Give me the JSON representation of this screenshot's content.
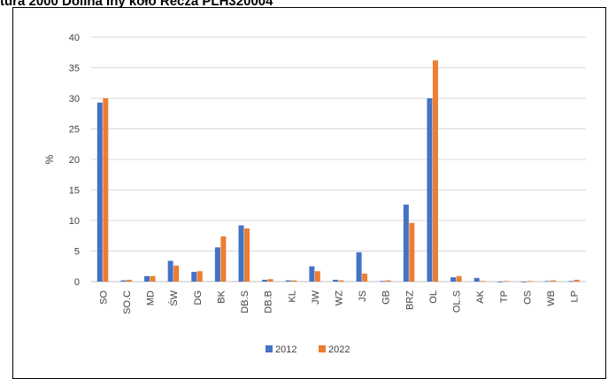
{
  "page_title": "tura 2000 Dolina Iny koło Recza PLH320004",
  "chart_data": {
    "type": "bar",
    "title": "tura 2000 Dolina Iny koło Recza PLH320004",
    "xlabel": "",
    "ylabel": "%",
    "ylim": [
      0,
      40
    ],
    "yticks": [
      0,
      5,
      10,
      15,
      20,
      25,
      30,
      35,
      40
    ],
    "grid": true,
    "legend_position": "bottom",
    "categories": [
      "SO",
      "SO.C",
      "MD",
      "ŚW",
      "DG",
      "BK",
      "DB.S",
      "DB.B",
      "KL",
      "JW",
      "WZ",
      "JS",
      "GB",
      "BRZ",
      "OL",
      "OL.S",
      "AK",
      "TP",
      "OS",
      "WB",
      "LP"
    ],
    "series": [
      {
        "name": "2012",
        "color": "#4472c4",
        "values": [
          29.3,
          0.2,
          0.9,
          3.4,
          1.6,
          5.6,
          9.2,
          0.3,
          0.2,
          2.5,
          0.3,
          4.8,
          0.1,
          12.6,
          30.0,
          0.7,
          0.6,
          0.0,
          0.0,
          0.1,
          0.1
        ]
      },
      {
        "name": "2022",
        "color": "#ed7d31",
        "values": [
          30.0,
          0.3,
          0.9,
          2.6,
          1.7,
          7.4,
          8.7,
          0.4,
          0.2,
          1.7,
          0.2,
          1.3,
          0.2,
          9.6,
          36.2,
          0.9,
          0.1,
          0.1,
          0.1,
          0.2,
          0.3
        ]
      }
    ]
  }
}
